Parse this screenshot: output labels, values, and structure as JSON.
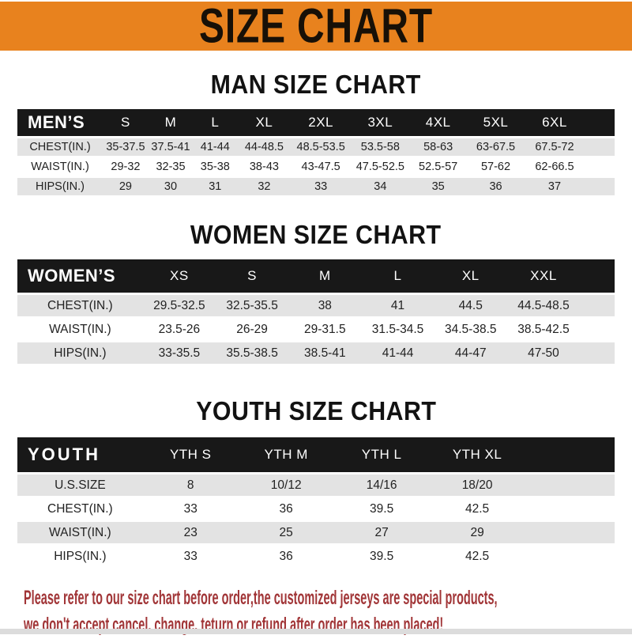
{
  "banner": {
    "title": "SIZE CHART"
  },
  "colors": {
    "banner_bg": "#E8821E",
    "header_bar": "#181818",
    "row_alt_gray": "#E3E3E3",
    "footer_text": "#A13537"
  },
  "sections": [
    {
      "key": "men",
      "heading": "MAN SIZE CHART",
      "corner_label": "MEN’S",
      "columns": [
        "S",
        "M",
        "L",
        "XL",
        "2XL",
        "3XL",
        "4XL",
        "5XL",
        "6XL"
      ],
      "rows": [
        {
          "label": "CHEST(IN.)",
          "values": [
            "35-37.5",
            "37.5-41",
            "41-44",
            "44-48.5",
            "48.5-53.5",
            "53.5-58",
            "58-63",
            "63-67.5",
            "67.5-72"
          ]
        },
        {
          "label": "WAIST(IN.)",
          "values": [
            "29-32",
            "32-35",
            "35-38",
            "38-43",
            "43-47.5",
            "47.5-52.5",
            "52.5-57",
            "57-62",
            "62-66.5"
          ]
        },
        {
          "label": "HIPS(IN.)",
          "values": [
            "29",
            "30",
            "31",
            "32",
            "33",
            "34",
            "35",
            "36",
            "37"
          ]
        }
      ]
    },
    {
      "key": "women",
      "heading": "WOMEN SIZE CHART",
      "corner_label": "WOMEN’S",
      "columns": [
        "XS",
        "S",
        "M",
        "L",
        "XL",
        "XXL"
      ],
      "rows": [
        {
          "label": "CHEST(IN.)",
          "values": [
            "29.5-32.5",
            "32.5-35.5",
            "38",
            "41",
            "44.5",
            "44.5-48.5"
          ]
        },
        {
          "label": "WAIST(IN.)",
          "values": [
            "23.5-26",
            "26-29",
            "29-31.5",
            "31.5-34.5",
            "34.5-38.5",
            "38.5-42.5"
          ]
        },
        {
          "label": "HIPS(IN.)",
          "values": [
            "33-35.5",
            "35.5-38.5",
            "38.5-41",
            "41-44",
            "44-47",
            "47-50"
          ]
        }
      ]
    },
    {
      "key": "youth",
      "heading": "YOUTH SIZE CHART",
      "corner_label": "YOUTH",
      "columns": [
        "YTH S",
        "YTH M",
        "YTH L",
        "YTH XL"
      ],
      "rows": [
        {
          "label": "U.S.SIZE",
          "values": [
            "8",
            "10/12",
            "14/16",
            "18/20"
          ]
        },
        {
          "label": "CHEST(IN.)",
          "values": [
            "33",
            "36",
            "39.5",
            "42.5"
          ]
        },
        {
          "label": "WAIST(IN.)",
          "values": [
            "23",
            "25",
            "27",
            "29"
          ]
        },
        {
          "label": "HIPS(IN.)",
          "values": [
            "33",
            "36",
            "39.5",
            "42.5"
          ]
        }
      ]
    }
  ],
  "footer": {
    "line1": "Please refer to our size chart before order,the customized jerseys are special products,",
    "line2": "we don't accept cancel, change, teturn or refund after order has been placed!"
  }
}
